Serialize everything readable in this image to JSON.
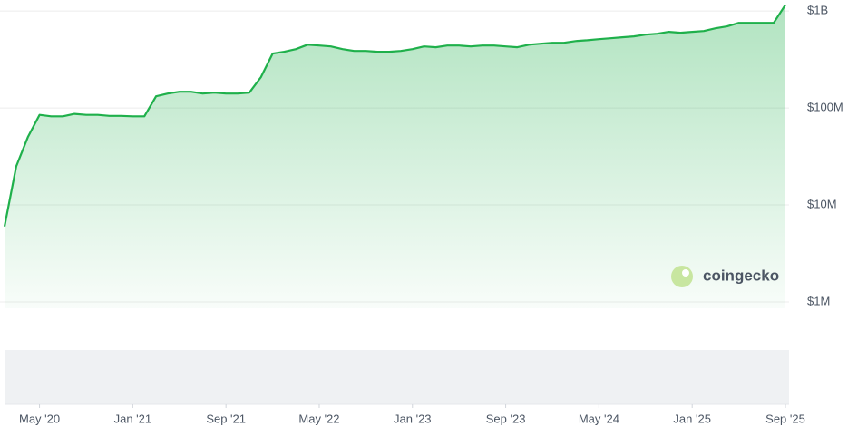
{
  "chart_data": {
    "type": "line",
    "yscale": "log",
    "grid": true,
    "color": "#1fb04b",
    "watermark": "coingecko",
    "x": [
      "2020-02",
      "2020-03",
      "2020-04",
      "2020-05",
      "2020-06",
      "2020-07",
      "2020-08",
      "2020-09",
      "2020-10",
      "2020-11",
      "2020-12",
      "2021-01",
      "2021-02",
      "2021-03",
      "2021-04",
      "2021-05",
      "2021-06",
      "2021-07",
      "2021-08",
      "2021-09",
      "2021-10",
      "2021-11",
      "2021-12",
      "2022-01",
      "2022-02",
      "2022-03",
      "2022-04",
      "2022-05",
      "2022-06",
      "2022-07",
      "2022-08",
      "2022-09",
      "2022-10",
      "2022-11",
      "2022-12",
      "2023-01",
      "2023-02",
      "2023-03",
      "2023-04",
      "2023-05",
      "2023-06",
      "2023-07",
      "2023-08",
      "2023-09",
      "2023-10",
      "2023-11",
      "2023-12",
      "2024-01",
      "2024-02",
      "2024-03",
      "2024-04",
      "2024-05",
      "2024-06",
      "2024-07",
      "2024-08",
      "2024-09",
      "2024-10",
      "2024-11",
      "2024-12",
      "2025-01",
      "2025-02",
      "2025-03",
      "2025-04",
      "2025-05",
      "2025-06",
      "2025-07",
      "2025-08",
      "2025-09"
    ],
    "values": [
      6000000,
      25000000,
      50000000,
      85000000,
      82000000,
      82000000,
      87000000,
      85000000,
      85000000,
      83000000,
      83000000,
      82000000,
      82000000,
      132000000,
      141000000,
      147000000,
      147000000,
      141000000,
      144000000,
      141000000,
      141000000,
      144000000,
      208000000,
      364000000,
      380000000,
      405000000,
      450000000,
      441000000,
      432000000,
      405000000,
      388000000,
      388000000,
      380000000,
      380000000,
      388000000,
      405000000,
      432000000,
      423000000,
      441000000,
      441000000,
      432000000,
      441000000,
      441000000,
      432000000,
      423000000,
      450000000,
      460000000,
      470000000,
      470000000,
      490000000,
      500000000,
      513000000,
      524000000,
      536000000,
      548000000,
      571000000,
      584000000,
      610000000,
      597000000,
      610000000,
      623000000,
      664000000,
      694000000,
      756000000,
      756000000,
      756000000,
      756000000,
      1160000000
    ],
    "xlim": [
      "2020-02",
      "2025-09"
    ],
    "xticks": [
      {
        "value": "2020-05",
        "label": "May '20"
      },
      {
        "value": "2021-01",
        "label": "Jan '21"
      },
      {
        "value": "2021-09",
        "label": "Sep '21"
      },
      {
        "value": "2022-05",
        "label": "May '22"
      },
      {
        "value": "2023-01",
        "label": "Jan '23"
      },
      {
        "value": "2023-09",
        "label": "Sep '23"
      },
      {
        "value": "2024-05",
        "label": "May '24"
      },
      {
        "value": "2025-01",
        "label": "Jan '25"
      },
      {
        "value": "2025-09",
        "label": "Sep '25"
      }
    ],
    "ylim": [
      860000,
      1300000000
    ],
    "yticks": [
      {
        "value": 1000000,
        "label": "$1M"
      },
      {
        "value": 10000000,
        "label": "$10M"
      },
      {
        "value": 100000000,
        "label": "$100M"
      },
      {
        "value": 1000000000,
        "label": "$1B"
      }
    ]
  }
}
